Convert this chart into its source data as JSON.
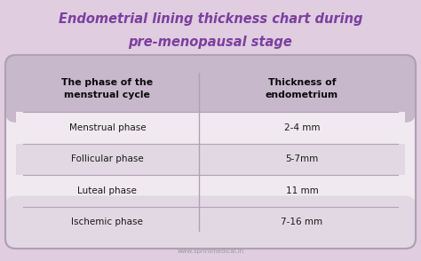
{
  "title_line1": "Endometrial lining thickness chart during",
  "title_line2": "pre-menopausal stage",
  "title_color": "#7B3FA0",
  "bg_color": "#E0CDE0",
  "table_bg": "#F0EAF0",
  "header_bg": "#C8B8CC",
  "col1_header": "The phase of the\nmenstrual cycle",
  "col2_header": "Thickness of\nendometrium",
  "rows": [
    [
      "Menstrual phase",
      "2-4 mm"
    ],
    [
      "Follicular phase",
      "5-7mm"
    ],
    [
      "Luteal phase",
      "11 mm"
    ],
    [
      "Ischemic phase",
      "7-16 mm"
    ]
  ],
  "footer": "www.sprintmedical.in",
  "row_colors": [
    "#F0EAF0",
    "#E2D8E4",
    "#F0EAF0",
    "#E2D8E4"
  ],
  "divider_color": "#B0A0B4",
  "text_color": "#1a1a1a",
  "header_text_color": "#0a0a0a",
  "title_fontsize": 10.5,
  "header_fontsize": 7.8,
  "cell_fontsize": 7.5,
  "footer_fontsize": 5.0
}
